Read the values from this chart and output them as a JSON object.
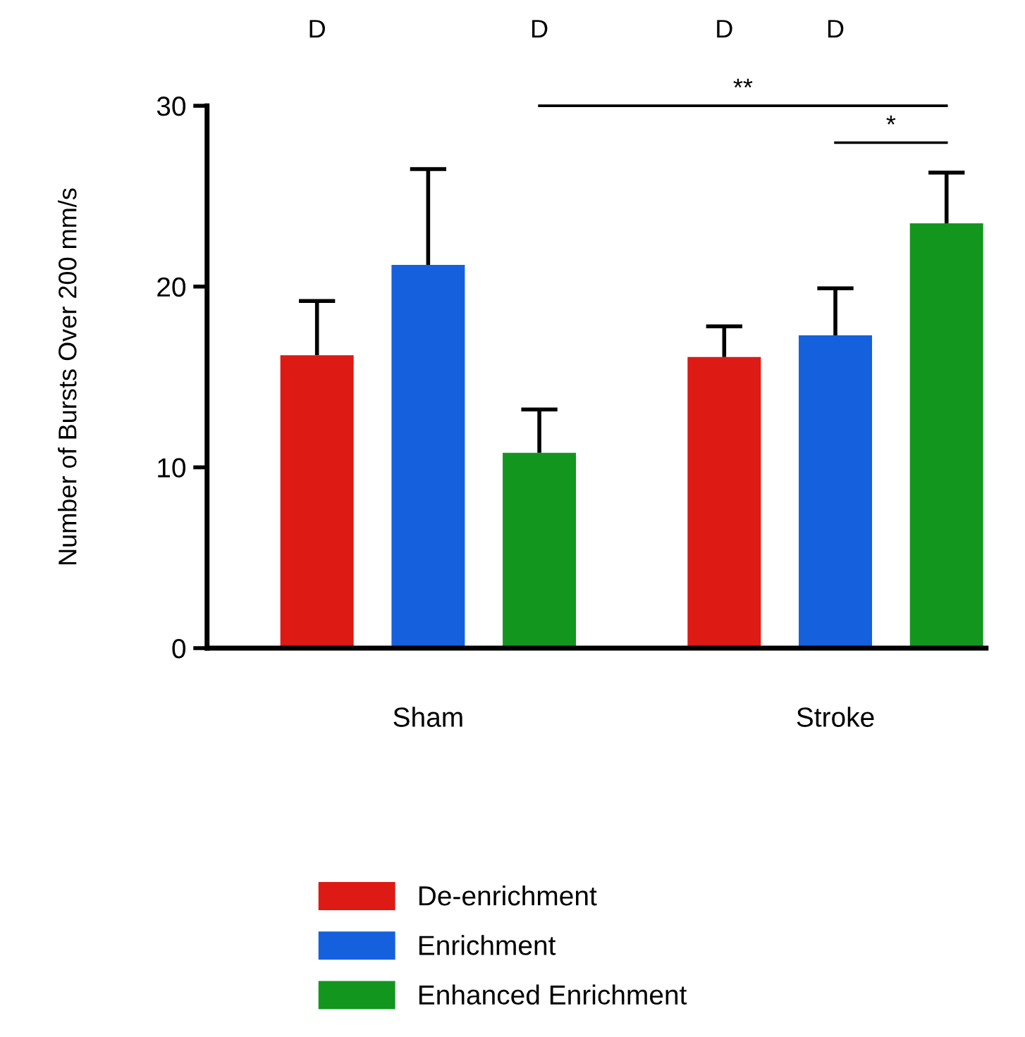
{
  "chart_data": {
    "type": "bar",
    "ylabel": "Number of Bursts Over 200 mm/s",
    "categories": [
      "Sham",
      "Stroke"
    ],
    "series": [
      {
        "name": "De-enrichment",
        "color": "#dd1a14",
        "values": [
          16.2,
          16.1
        ],
        "errors": [
          [
            16.2,
            19.2
          ],
          [
            16.1,
            17.8
          ]
        ]
      },
      {
        "name": "Enrichment",
        "color": "#1560dc",
        "values": [
          21.2,
          17.3
        ],
        "errors": [
          [
            21.2,
            26.5
          ],
          [
            17.3,
            19.9
          ]
        ]
      },
      {
        "name": "Enhanced Enrichment",
        "color": "#13961e",
        "values": [
          10.8,
          23.5
        ],
        "errors": [
          [
            10.8,
            13.2
          ],
          [
            23.5,
            26.3
          ]
        ]
      }
    ],
    "ylim": [
      0,
      30
    ],
    "yticks": [
      0,
      10,
      20,
      30
    ],
    "grid": false,
    "legend": "bottom",
    "annotations": [
      "D",
      "D",
      "D",
      "D",
      "**",
      "*"
    ]
  }
}
